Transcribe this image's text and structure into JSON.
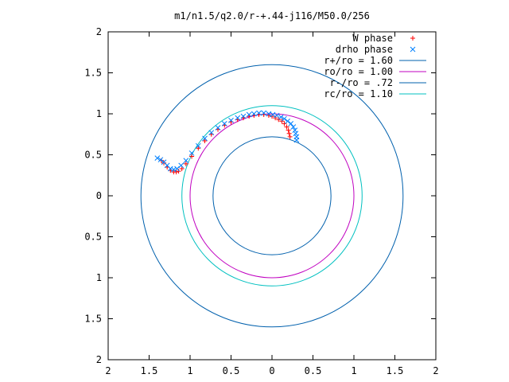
{
  "chart_data": {
    "type": "scatter",
    "title": "m1/n1.5/q2.0/r-+.44-j116/M50.0/256",
    "xlabel": "",
    "ylabel": "",
    "xlim": [
      -2,
      2
    ],
    "ylim": [
      -2,
      2
    ],
    "x_ticks": [
      -2,
      -1.5,
      -1,
      -0.5,
      0,
      0.5,
      1,
      1.5,
      2
    ],
    "y_ticks": [
      -2,
      -1.5,
      -1,
      -0.5,
      0,
      0.5,
      1,
      1.5,
      2
    ],
    "x_tick_labels": [
      "2",
      "1.5",
      "1",
      "0.5",
      "0",
      "0.5",
      "1",
      "1.5",
      "2"
    ],
    "y_tick_labels": [
      "2",
      "1.5",
      "1",
      "0.5",
      "0",
      "0.5",
      "1",
      "1.5",
      "2"
    ],
    "grid": false,
    "legend_position": "top-right",
    "series": [
      {
        "name": "W phase",
        "marker": "plus",
        "color": "#ff0000",
        "points": [
          [
            0.22,
            0.72
          ],
          [
            0.21,
            0.76
          ],
          [
            0.2,
            0.8
          ],
          [
            0.18,
            0.84
          ],
          [
            0.15,
            0.88
          ],
          [
            0.12,
            0.91
          ],
          [
            0.08,
            0.93
          ],
          [
            0.04,
            0.95
          ],
          [
            0.0,
            0.97
          ],
          [
            -0.04,
            0.98
          ],
          [
            -0.1,
            0.99
          ],
          [
            -0.16,
            0.99
          ],
          [
            -0.22,
            0.98
          ],
          [
            -0.28,
            0.97
          ],
          [
            -0.35,
            0.95
          ],
          [
            -0.42,
            0.93
          ],
          [
            -0.5,
            0.9
          ],
          [
            -0.58,
            0.86
          ],
          [
            -0.66,
            0.81
          ],
          [
            -0.74,
            0.75
          ],
          [
            -0.82,
            0.67
          ],
          [
            -0.9,
            0.58
          ],
          [
            -0.98,
            0.48
          ],
          [
            -1.05,
            0.39
          ],
          [
            -1.1,
            0.33
          ],
          [
            -1.14,
            0.3
          ],
          [
            -1.17,
            0.29
          ],
          [
            -1.2,
            0.29
          ],
          [
            -1.24,
            0.31
          ],
          [
            -1.28,
            0.35
          ],
          [
            -1.32,
            0.4
          ],
          [
            -1.35,
            0.43
          ]
        ]
      },
      {
        "name": "drho phase",
        "marker": "cross",
        "color": "#0080ff",
        "points": [
          [
            0.3,
            0.68
          ],
          [
            0.3,
            0.72
          ],
          [
            0.29,
            0.76
          ],
          [
            0.28,
            0.8
          ],
          [
            0.26,
            0.84
          ],
          [
            0.23,
            0.88
          ],
          [
            0.19,
            0.91
          ],
          [
            0.15,
            0.94
          ],
          [
            0.11,
            0.96
          ],
          [
            0.06,
            0.98
          ],
          [
            0.01,
            0.99
          ],
          [
            -0.04,
            1.0
          ],
          [
            -0.1,
            1.01
          ],
          [
            -0.16,
            1.01
          ],
          [
            -0.22,
            1.0
          ],
          [
            -0.28,
            0.99
          ],
          [
            -0.35,
            0.97
          ],
          [
            -0.42,
            0.95
          ],
          [
            -0.5,
            0.92
          ],
          [
            -0.58,
            0.88
          ],
          [
            -0.66,
            0.83
          ],
          [
            -0.74,
            0.77
          ],
          [
            -0.82,
            0.7
          ],
          [
            -0.9,
            0.61
          ],
          [
            -0.98,
            0.52
          ],
          [
            -1.05,
            0.43
          ],
          [
            -1.11,
            0.37
          ],
          [
            -1.16,
            0.33
          ],
          [
            -1.2,
            0.32
          ],
          [
            -1.24,
            0.33
          ],
          [
            -1.28,
            0.37
          ],
          [
            -1.32,
            0.41
          ],
          [
            -1.36,
            0.44
          ],
          [
            -1.4,
            0.46
          ]
        ]
      },
      {
        "name": "r+/ro = 1.60",
        "type": "circle",
        "radius": 1.6,
        "color": "#0060ad"
      },
      {
        "name": "ro/ro = 1.00",
        "type": "circle",
        "radius": 1.0,
        "color": "#c000c0"
      },
      {
        "name": "r-/ro = .72",
        "type": "circle",
        "radius": 0.72,
        "color": "#0060ad"
      },
      {
        "name": "rc/ro = 1.10",
        "type": "circle",
        "radius": 1.1,
        "color": "#00c0c0"
      }
    ]
  }
}
